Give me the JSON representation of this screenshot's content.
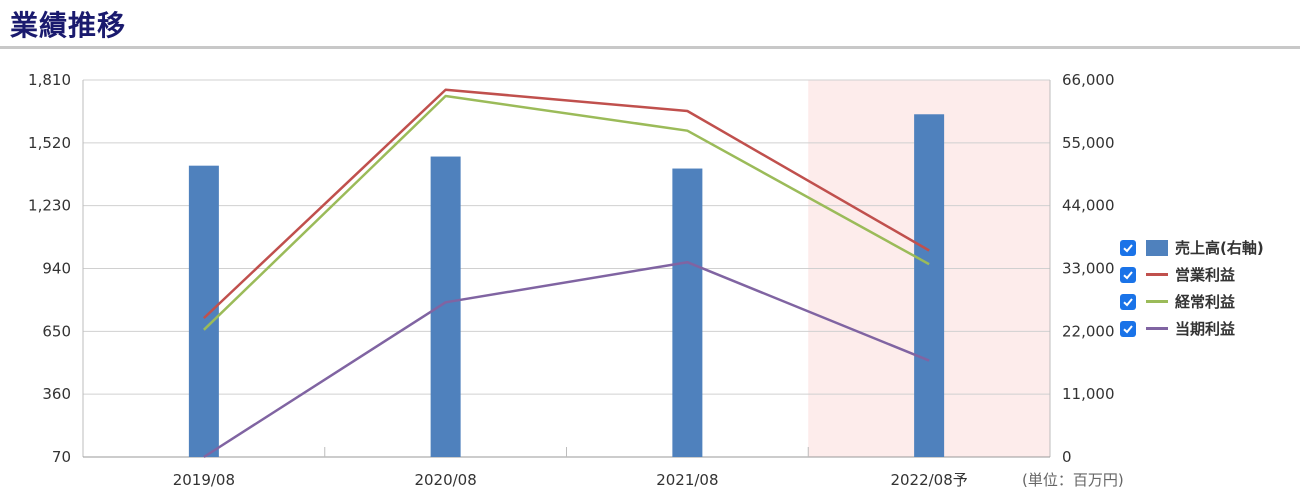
{
  "page": {
    "title": "業績推移",
    "unit_label": "(単位：百万円)"
  },
  "chart_data": {
    "type": "bar+line",
    "categories": [
      "2019/08",
      "2020/08",
      "2021/08",
      "2022/08予"
    ],
    "forecast_category": "2022/08予",
    "left_axis": {
      "ticks": [
        "1,810",
        "1,520",
        "1,230",
        "940",
        "650",
        "360",
        "70"
      ],
      "min": 70,
      "max": 1810
    },
    "right_axis": {
      "ticks": [
        "66,000",
        "55,000",
        "44,000",
        "33,000",
        "22,000",
        "11,000",
        "0"
      ],
      "min": 0,
      "max": 66000
    },
    "series": [
      {
        "name": "売上高(右軸)",
        "type": "bar",
        "axis": "right",
        "color": "#4f81bd",
        "values": [
          51000,
          52600,
          50500,
          60000
        ]
      },
      {
        "name": "営業利益",
        "type": "line",
        "axis": "left",
        "color": "#c0504d",
        "values": [
          711,
          1765,
          1667,
          1023
        ]
      },
      {
        "name": "経常利益",
        "type": "line",
        "axis": "left",
        "color": "#9bbb59",
        "values": [
          657,
          1736,
          1576,
          960
        ]
      },
      {
        "name": "当期利益",
        "type": "line",
        "axis": "left",
        "color": "#8064a2",
        "values": [
          70,
          784,
          969,
          515
        ]
      }
    ],
    "grid": true,
    "legend_position": "right"
  }
}
